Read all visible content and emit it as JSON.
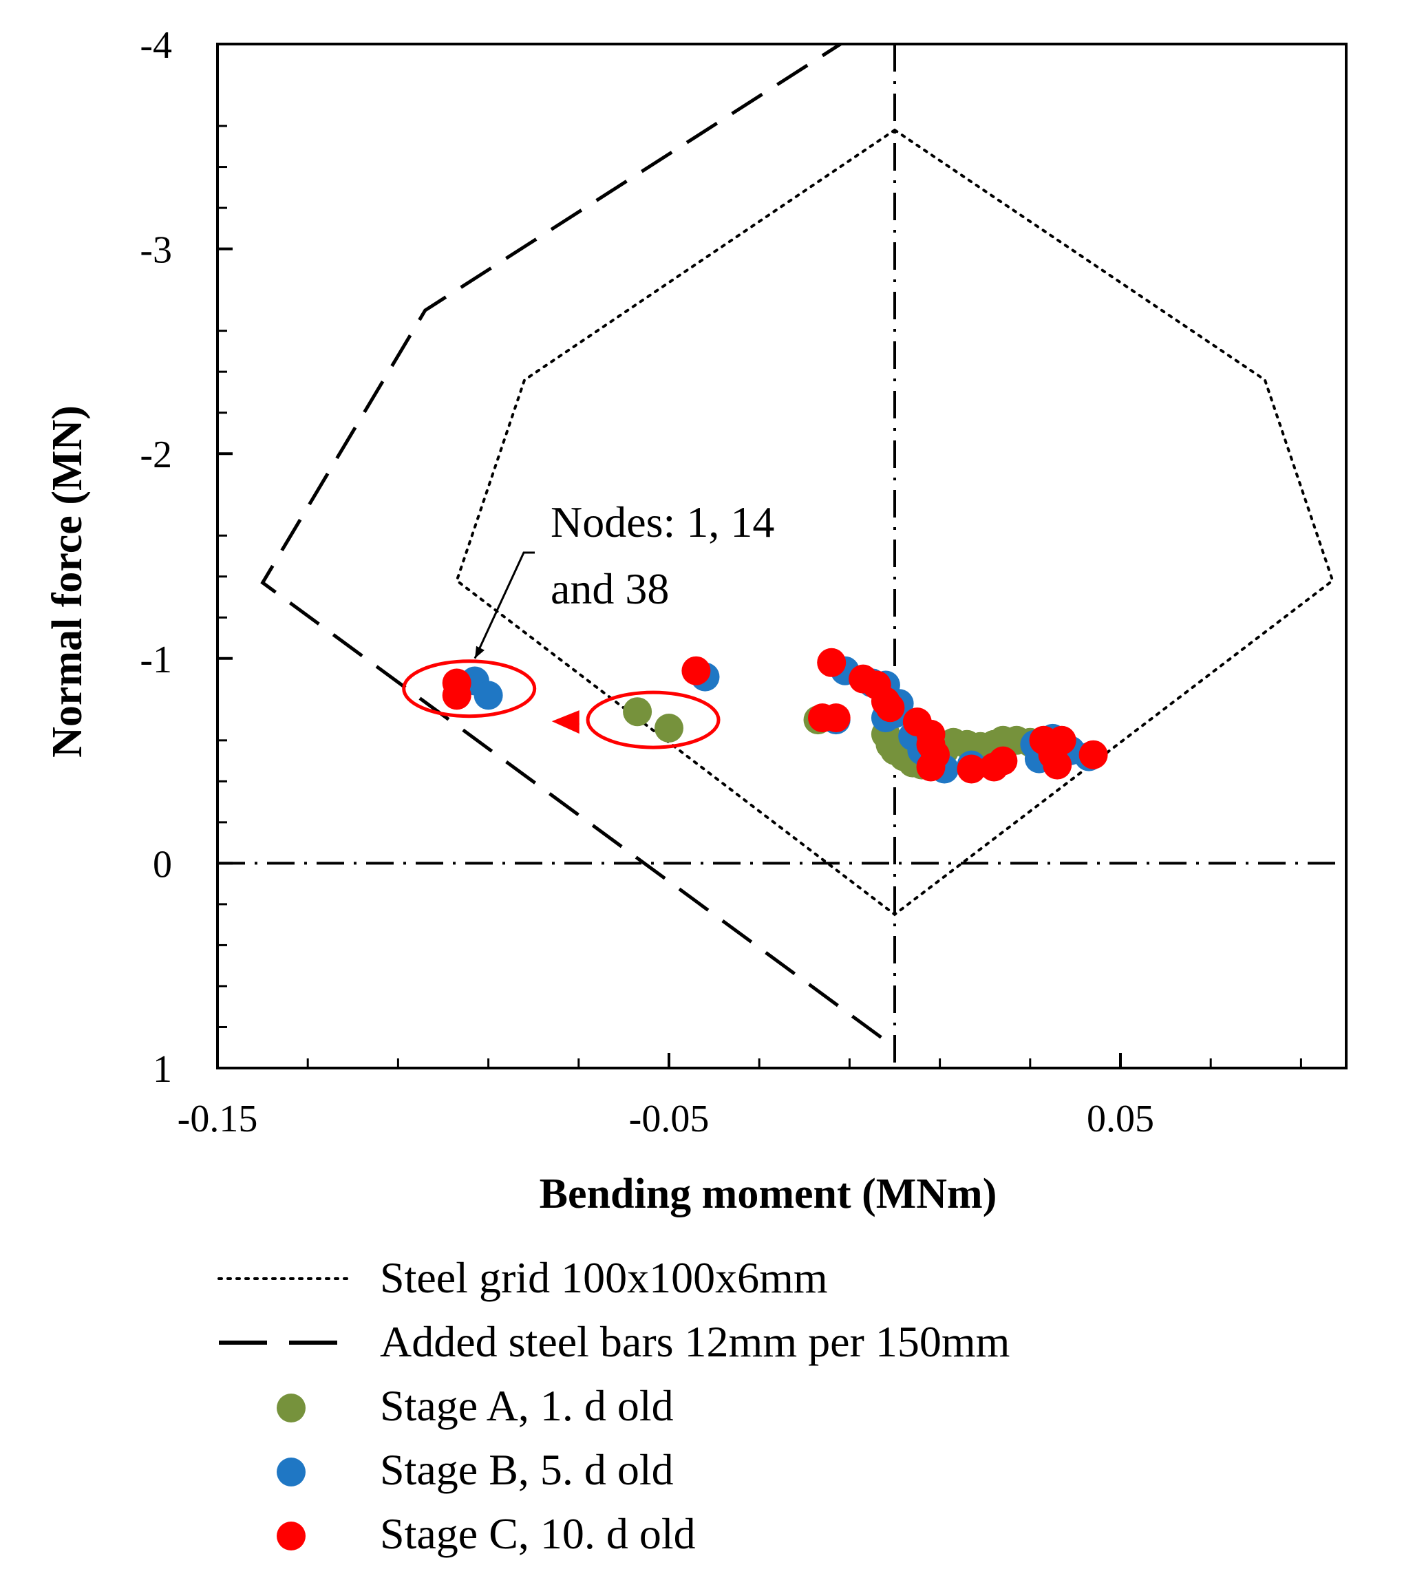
{
  "chart_data": {
    "type": "scatter",
    "title": "",
    "xlabel": "Bending moment (MNm)",
    "ylabel": "Normal force (MN)",
    "xlim": [
      -0.15,
      0.1
    ],
    "ylim": [
      1,
      -4
    ],
    "x_tick_labels": [
      {
        "value": -0.15,
        "label": "-0.15"
      },
      {
        "value": -0.05,
        "label": "-0.05"
      },
      {
        "value": 0.05,
        "label": "0.05"
      }
    ],
    "y_tick_labels": [
      {
        "value": -4,
        "label": "-4"
      },
      {
        "value": -3,
        "label": "-3"
      },
      {
        "value": -2,
        "label": "-2"
      },
      {
        "value": -1,
        "label": "-1"
      },
      {
        "value": 0,
        "label": "0"
      },
      {
        "value": 1,
        "label": "1"
      }
    ],
    "x_minor_ticks": [
      -0.13,
      -0.11,
      -0.09,
      -0.07,
      -0.03,
      -0.01,
      0.01,
      0.03,
      0.07,
      0.09
    ],
    "y_minor_ticks": [
      -3.6,
      -3.4,
      -3.2,
      -2.6,
      -2.4,
      -2.2,
      -1.6,
      -1.4,
      -1.2,
      -0.6,
      -0.4,
      -0.2,
      0.2,
      0.4,
      0.6,
      0.8
    ],
    "boundaries": [
      {
        "name": "Steel grid 100x100x6mm",
        "style": "dotted",
        "points": [
          [
            0.0,
            -3.58
          ],
          [
            0.082,
            -2.36
          ],
          [
            0.097,
            -1.38
          ],
          [
            0.0,
            0.25
          ],
          [
            -0.097,
            -1.38
          ],
          [
            -0.082,
            -2.36
          ],
          [
            0.0,
            -3.58
          ]
        ]
      },
      {
        "name": "Added steel bars 12mm per 150mm",
        "style": "dashed",
        "points": [
          [
            -0.003,
            0.85
          ],
          [
            -0.14,
            -1.37
          ],
          [
            -0.104,
            -2.7
          ],
          [
            -0.012,
            -4.0
          ]
        ]
      }
    ],
    "reference_lines": [
      {
        "axis": "x",
        "value": 0.0,
        "style": "dash-dot"
      },
      {
        "axis": "y",
        "value": 0.0,
        "style": "dash-dot"
      }
    ],
    "series": [
      {
        "name": "Stage A, 1. d old",
        "color": "#76923c",
        "points": [
          [
            -0.057,
            -0.74
          ],
          [
            -0.05,
            -0.66
          ],
          [
            -0.017,
            -0.7
          ],
          [
            -0.002,
            -0.63
          ],
          [
            -0.001,
            -0.58
          ],
          [
            0.0,
            -0.55
          ],
          [
            0.002,
            -0.52
          ],
          [
            0.004,
            -0.49
          ],
          [
            0.006,
            -0.48
          ],
          [
            0.009,
            -0.51
          ],
          [
            0.011,
            -0.55
          ],
          [
            0.013,
            -0.59
          ],
          [
            0.016,
            -0.58
          ],
          [
            0.019,
            -0.57
          ],
          [
            0.022,
            -0.58
          ],
          [
            0.024,
            -0.6
          ],
          [
            0.027,
            -0.6
          ],
          [
            0.03,
            -0.59
          ],
          [
            0.033,
            -0.58
          ]
        ]
      },
      {
        "name": "Stage B, 5. d old",
        "color": "#1f77c4",
        "points": [
          [
            -0.093,
            -0.89
          ],
          [
            -0.09,
            -0.82
          ],
          [
            -0.042,
            -0.91
          ],
          [
            -0.013,
            -0.7
          ],
          [
            -0.011,
            -0.94
          ],
          [
            -0.005,
            -0.88
          ],
          [
            -0.002,
            -0.87
          ],
          [
            0.001,
            -0.78
          ],
          [
            0.0,
            -0.73
          ],
          [
            -0.002,
            -0.71
          ],
          [
            0.004,
            -0.62
          ],
          [
            0.006,
            -0.55
          ],
          [
            0.008,
            -0.49
          ],
          [
            0.011,
            -0.46
          ],
          [
            0.017,
            -0.48
          ],
          [
            0.031,
            -0.58
          ],
          [
            0.032,
            -0.51
          ],
          [
            0.035,
            -0.61
          ],
          [
            0.039,
            -0.55
          ],
          [
            0.043,
            -0.52
          ]
        ]
      },
      {
        "name": "Stage C, 10. d old",
        "color": "#ff0000",
        "points": [
          [
            -0.097,
            -0.88
          ],
          [
            -0.097,
            -0.82
          ],
          [
            -0.044,
            -0.94
          ],
          [
            -0.016,
            -0.71
          ],
          [
            -0.013,
            -0.71
          ],
          [
            -0.014,
            -0.98
          ],
          [
            -0.007,
            -0.9
          ],
          [
            -0.004,
            -0.87
          ],
          [
            -0.002,
            -0.79
          ],
          [
            -0.001,
            -0.76
          ],
          [
            0.005,
            -0.69
          ],
          [
            0.008,
            -0.63
          ],
          [
            0.008,
            -0.58
          ],
          [
            0.009,
            -0.53
          ],
          [
            0.008,
            -0.47
          ],
          [
            0.017,
            -0.46
          ],
          [
            0.022,
            -0.47
          ],
          [
            0.024,
            -0.5
          ],
          [
            0.033,
            -0.6
          ],
          [
            0.035,
            -0.53
          ],
          [
            0.036,
            -0.48
          ],
          [
            0.037,
            -0.6
          ],
          [
            0.044,
            -0.53
          ]
        ]
      }
    ],
    "annotations": {
      "label_line1": "Nodes: 1, 14",
      "label_line2": "and 38",
      "annotation_color": "#ff0000"
    },
    "legend": {
      "placement": "bottom",
      "entries": [
        {
          "label": "Steel grid 100x100x6mm",
          "kind": "dotted"
        },
        {
          "label": "Added steel bars 12mm per 150mm",
          "kind": "dashed"
        },
        {
          "label": "Stage A, 1. d old",
          "kind": "marker",
          "color": "#76923c"
        },
        {
          "label": "Stage B, 5. d old",
          "kind": "marker",
          "color": "#1f77c4"
        },
        {
          "label": "Stage C, 10. d old",
          "kind": "marker",
          "color": "#ff0000"
        }
      ]
    }
  }
}
